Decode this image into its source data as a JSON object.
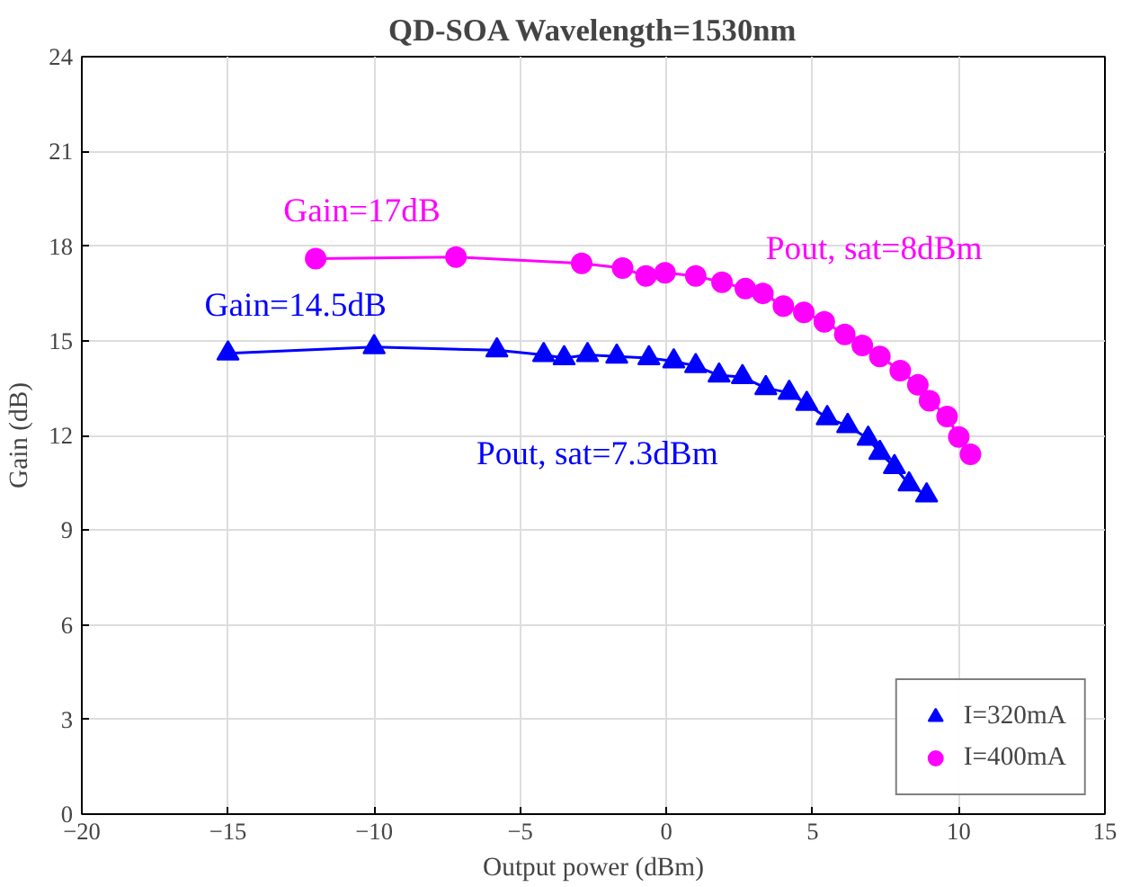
{
  "chart_data": {
    "type": "line",
    "title": "QD-SOA Wavelength=1530nm",
    "xlabel": "Output power (dBm)",
    "ylabel": "Gain (dB)",
    "xlim": [
      -20,
      15
    ],
    "xticks": [
      -20,
      -15,
      -10,
      -5,
      0,
      5,
      10,
      15
    ],
    "ylim": [
      0,
      24
    ],
    "yticks": [
      0,
      3,
      6,
      9,
      12,
      15,
      18,
      21,
      24
    ],
    "grid": true,
    "legend": "bottom right",
    "series": [
      {
        "name": "I=320mA",
        "color": "#0000ff",
        "marker": "triangle",
        "x": [
          -15,
          -10,
          -5.8,
          -4.2,
          -3.5,
          -2.7,
          -1.7,
          -0.6,
          0.25,
          1.0,
          1.8,
          2.6,
          3.4,
          4.2,
          4.8,
          5.5,
          6.2,
          6.9,
          7.3,
          7.8,
          8.3,
          8.9
        ],
        "values": [
          14.6,
          14.8,
          14.7,
          14.55,
          14.45,
          14.55,
          14.5,
          14.45,
          14.35,
          14.2,
          13.9,
          13.85,
          13.5,
          13.35,
          13.0,
          12.55,
          12.3,
          11.9,
          11.45,
          11.0,
          10.45,
          10.1
        ]
      },
      {
        "name": "I=400mA",
        "color": "#ff00ff",
        "marker": "circle",
        "x": [
          -12,
          -7.2,
          -2.9,
          -1.5,
          -0.7,
          -0.05,
          1.0,
          1.9,
          2.7,
          3.3,
          4.0,
          4.7,
          5.4,
          6.1,
          6.7,
          7.3,
          8.0,
          8.6,
          9.0,
          9.6,
          10.0,
          10.4
        ],
        "values": [
          17.6,
          17.65,
          17.45,
          17.3,
          17.05,
          17.15,
          17.05,
          16.85,
          16.65,
          16.5,
          16.1,
          15.9,
          15.6,
          15.2,
          14.85,
          14.5,
          14.05,
          13.6,
          13.1,
          12.6,
          11.95,
          11.4
        ]
      }
    ],
    "annotations": [
      "Gain=17dB",
      "Gain=14.5dB",
      "Pout, sat=8dBm",
      "Pout, sat=7.3dBm"
    ]
  }
}
